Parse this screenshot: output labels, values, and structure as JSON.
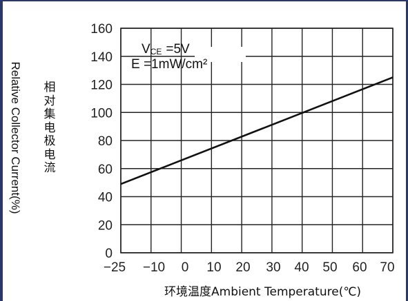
{
  "chart_data": {
    "type": "line",
    "ylabel": "Relative Collector Current(%)",
    "ylabel_cn": "相对集电极电流",
    "xlabel": "环境温度Ambient Temperature(℃)",
    "x_ticks": [
      "−25",
      "−10",
      "0",
      "10",
      "20",
      "30",
      "40",
      "50",
      "60",
      "70"
    ],
    "y_ticks": [
      "0",
      "20",
      "40",
      "60",
      "80",
      "100",
      "120",
      "140",
      "160"
    ],
    "ylim": [
      0,
      160
    ],
    "grid": true,
    "annotation": {
      "line1_main": "V",
      "line1_sub": "CE",
      "line1_rest": "=5V",
      "line2": "E  =1mW/cm²"
    },
    "series": [
      {
        "x": [
          -25,
          70
        ],
        "y": [
          49,
          125
        ]
      }
    ]
  },
  "colors": {
    "frame": "#2a3868",
    "line": "#111111",
    "grid": "#222222"
  }
}
